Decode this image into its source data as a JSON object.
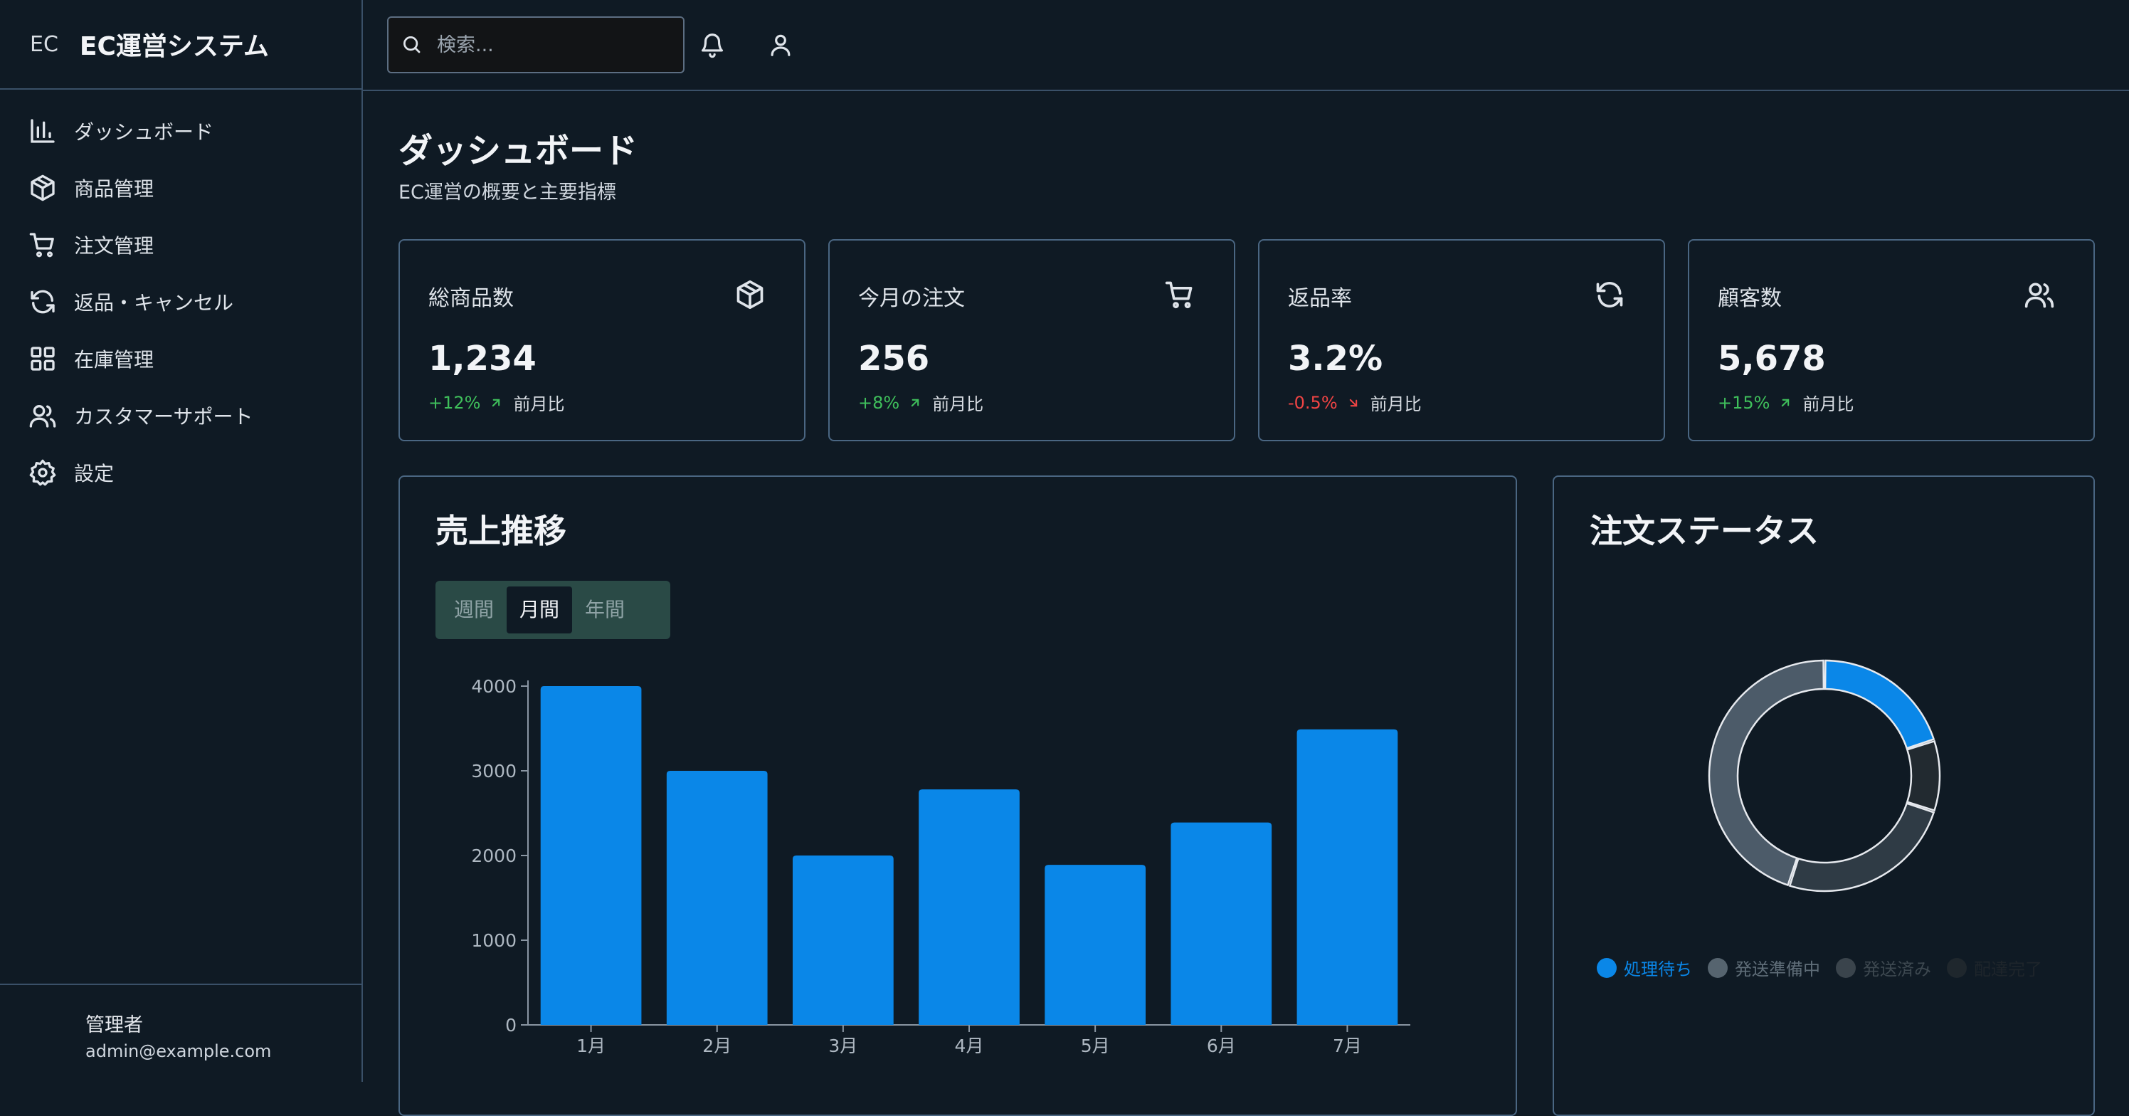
{
  "app": {
    "logo_text": "EC",
    "name": "EC運営システム"
  },
  "sidebar": {
    "items": [
      {
        "label": "ダッシュボード",
        "icon": "bar-chart-icon"
      },
      {
        "label": "商品管理",
        "icon": "package-icon"
      },
      {
        "label": "注文管理",
        "icon": "cart-icon"
      },
      {
        "label": "返品・キャンセル",
        "icon": "refresh-icon"
      },
      {
        "label": "在庫管理",
        "icon": "grid-icon"
      },
      {
        "label": "カスタマーサポート",
        "icon": "users-icon"
      },
      {
        "label": "設定",
        "icon": "gear-icon"
      }
    ],
    "user": {
      "name": "管理者",
      "email": "admin@example.com"
    }
  },
  "topbar": {
    "search_placeholder": "検索...",
    "search_value": ""
  },
  "page": {
    "title": "ダッシュボード",
    "subtitle": "EC運営の概要と主要指標"
  },
  "stats": [
    {
      "label": "総商品数",
      "value": "1,234",
      "delta": "+12%",
      "direction": "up",
      "note": "前月比",
      "icon": "package-icon"
    },
    {
      "label": "今月の注文",
      "value": "256",
      "delta": "+8%",
      "direction": "up",
      "note": "前月比",
      "icon": "cart-icon"
    },
    {
      "label": "返品率",
      "value": "3.2%",
      "delta": "-0.5%",
      "direction": "down",
      "note": "前月比",
      "icon": "refresh-icon"
    },
    {
      "label": "顧客数",
      "value": "5,678",
      "delta": "+15%",
      "direction": "up",
      "note": "前月比",
      "icon": "users-icon"
    }
  ],
  "sales_panel": {
    "title": "売上推移",
    "periods": [
      "週間",
      "月間",
      "年間"
    ],
    "selected_period": "月間"
  },
  "status_panel": {
    "title": "注文ステータス"
  },
  "colors": {
    "accent": "#0a87e8",
    "up": "#3fbf5b",
    "down": "#ef4444",
    "border": "#4a6682"
  },
  "chart_data": [
    {
      "type": "bar",
      "categories": [
        "1月",
        "2月",
        "3月",
        "4月",
        "5月",
        "6月",
        "7月"
      ],
      "values": [
        4000,
        3000,
        2000,
        2780,
        1890,
        2390,
        3490
      ],
      "ylim": [
        0,
        4000
      ],
      "yticks": [
        0,
        1000,
        2000,
        3000,
        4000
      ],
      "grid": false,
      "color": "#0a87e8"
    },
    {
      "type": "pie",
      "donut": true,
      "labels": [
        "処理待ち",
        "発送準備中",
        "発送済み",
        "配達完了"
      ],
      "values": [
        20,
        10,
        25,
        45
      ],
      "colors": [
        "#0a87e8",
        "#222a30",
        "#2f3b45",
        "#4c5b69"
      ],
      "legend_colors": [
        "#0a87e8",
        "#56646f",
        "#3a444c",
        "#1f272d"
      ],
      "legend_text_colors": [
        "#0a87e8",
        "#5f6d78",
        "#3d4850",
        "#1e252b"
      ],
      "legend_position": "bottom"
    }
  ]
}
